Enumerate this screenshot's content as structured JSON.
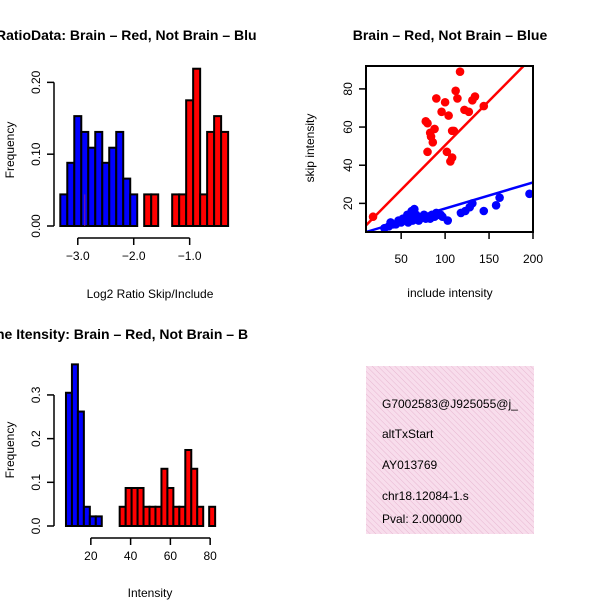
{
  "colors": {
    "brain": "#FF0000",
    "not_brain": "#0000FF",
    "overlap": "#7B1FA2",
    "info_bg": "#F8DDEC",
    "pval": "#A30000"
  },
  "info_box": {
    "lines": [
      "G7002583@J925055@j_",
      "altTxStart",
      "AY013769",
      "chr18.12084-1.s"
    ],
    "pval": "Pval: 2.000000"
  },
  "chart_data": [
    {
      "type": "bar",
      "title": "RatioData: Brain – Red, Not Brain – Blu",
      "xlabel": "Log2 Ratio Skip/Include",
      "ylabel": "Frequency",
      "xlim": [
        -3.3,
        -0.1
      ],
      "ylim": [
        0,
        0.22
      ],
      "xticks": [
        -3.0,
        -2.0,
        -1.0
      ],
      "xtick_labels": [
        "−3.0",
        "−2.0",
        "−1.0"
      ],
      "yticks": [
        0.0,
        0.1,
        0.2
      ],
      "ytick_labels": [
        "0.00",
        "0.10",
        "0.20"
      ],
      "bin_width": 0.125,
      "series": [
        {
          "name": "Not Brain",
          "color_key": "not_brain",
          "bins": [
            {
              "x": -3.25,
              "value": 0.044
            },
            {
              "x": -3.125,
              "value": 0.088
            },
            {
              "x": -3.0,
              "value": 0.153
            },
            {
              "x": -2.875,
              "value": 0.131
            },
            {
              "x": -2.75,
              "value": 0.109
            },
            {
              "x": -2.625,
              "value": 0.131
            },
            {
              "x": -2.5,
              "value": 0.088
            },
            {
              "x": -2.375,
              "value": 0.109
            },
            {
              "x": -2.25,
              "value": 0.131
            },
            {
              "x": -2.125,
              "value": 0.066
            },
            {
              "x": -2.0,
              "value": 0.044
            }
          ]
        },
        {
          "name": "Brain",
          "color_key": "brain",
          "bins": [
            {
              "x": -1.75,
              "value": 0.044
            },
            {
              "x": -1.625,
              "value": 0.044
            },
            {
              "x": -1.25,
              "value": 0.044
            },
            {
              "x": -1.125,
              "value": 0.044
            },
            {
              "x": -1.0,
              "value": 0.175
            },
            {
              "x": -0.875,
              "value": 0.219
            },
            {
              "x": -0.75,
              "value": 0.044
            },
            {
              "x": -0.625,
              "value": 0.131
            },
            {
              "x": -0.5,
              "value": 0.153
            },
            {
              "x": -0.375,
              "value": 0.131
            }
          ]
        }
      ],
      "overlap": [
        {
          "x": -2.875,
          "value": 0.044
        }
      ]
    },
    {
      "type": "scatter",
      "title": "Brain – Red, Not Brain – Blue",
      "xlabel": "include intensity",
      "ylabel": "skip intensity",
      "xlim": [
        10,
        200
      ],
      "ylim": [
        5,
        92
      ],
      "xticks": [
        50,
        100,
        150,
        200
      ],
      "yticks": [
        20,
        40,
        60,
        80
      ],
      "series": [
        {
          "name": "Brain",
          "color_key": "brain",
          "points": [
            [
              18,
              13
            ],
            [
              78,
              63
            ],
            [
              80,
              62
            ],
            [
              83,
              57
            ],
            [
              86,
              52
            ],
            [
              84,
              55
            ],
            [
              88,
              59
            ],
            [
              90,
              75
            ],
            [
              96,
              68
            ],
            [
              100,
              73
            ],
            [
              104,
              66
            ],
            [
              106,
              42
            ],
            [
              108,
              44
            ],
            [
              102,
              47
            ],
            [
              110,
              58
            ],
            [
              108,
              58
            ],
            [
              112,
              79
            ],
            [
              117,
              89
            ],
            [
              114,
              75
            ],
            [
              122,
              69
            ],
            [
              127,
              68
            ],
            [
              131,
              74
            ],
            [
              134,
              76
            ],
            [
              144,
              71
            ],
            [
              80,
              47
            ]
          ],
          "fit": {
            "x": [
              10,
              200
            ],
            "y": [
              8.5,
              97
            ]
          }
        },
        {
          "name": "Not Brain",
          "color_key": "not_brain",
          "points": [
            [
              31,
              7
            ],
            [
              36,
              8
            ],
            [
              38,
              10
            ],
            [
              41,
              9
            ],
            [
              44,
              9
            ],
            [
              47,
              11
            ],
            [
              50,
              10
            ],
            [
              52,
              12
            ],
            [
              55,
              11
            ],
            [
              57,
              14
            ],
            [
              60,
              13
            ],
            [
              62,
              16
            ],
            [
              63,
              11
            ],
            [
              64,
              12
            ],
            [
              65,
              17
            ],
            [
              66,
              12
            ],
            [
              67,
              14
            ],
            [
              68,
              13
            ],
            [
              70,
              11
            ],
            [
              72,
              12
            ],
            [
              74,
              13
            ],
            [
              76,
              14
            ],
            [
              78,
              12
            ],
            [
              80,
              13
            ],
            [
              83,
              12
            ],
            [
              85,
              14
            ],
            [
              88,
              13
            ],
            [
              90,
              15
            ],
            [
              92,
              14
            ],
            [
              95,
              14
            ],
            [
              97,
              13
            ],
            [
              103,
              11
            ],
            [
              118,
              15
            ],
            [
              123,
              16
            ],
            [
              128,
              18
            ],
            [
              131,
              20
            ],
            [
              144,
              16
            ],
            [
              158,
              19
            ],
            [
              162,
              23
            ],
            [
              196,
              25
            ],
            [
              40,
              9
            ],
            [
              58,
              10
            ]
          ],
          "fit": {
            "x": [
              10,
              200
            ],
            "y": [
              5,
              31
            ]
          }
        }
      ]
    },
    {
      "type": "bar",
      "title": "ne Itensity: Brain – Red, Not Brain – B",
      "xlabel": "Intensity",
      "ylabel": "Frequency",
      "xlim": [
        5,
        95
      ],
      "ylim": [
        0,
        0.38
      ],
      "xticks": [
        20,
        40,
        60,
        80
      ],
      "yticks": [
        0.0,
        0.1,
        0.2,
        0.3
      ],
      "ytick_labels": [
        "0.0",
        "0.1",
        "0.2",
        "0.3"
      ],
      "bin_width": 3,
      "series": [
        {
          "name": "Not Brain",
          "color_key": "not_brain",
          "bins": [
            {
              "x": 9,
              "value": 0.305
            },
            {
              "x": 12,
              "value": 0.37
            },
            {
              "x": 15,
              "value": 0.262
            },
            {
              "x": 18,
              "value": 0.044
            },
            {
              "x": 21,
              "value": 0.022
            },
            {
              "x": 24,
              "value": 0.022
            }
          ]
        },
        {
          "name": "Brain",
          "color_key": "brain",
          "bins": [
            {
              "x": 36,
              "value": 0.044
            },
            {
              "x": 39,
              "value": 0.087
            },
            {
              "x": 42,
              "value": 0.087
            },
            {
              "x": 45,
              "value": 0.087
            },
            {
              "x": 48,
              "value": 0.044
            },
            {
              "x": 51,
              "value": 0.044
            },
            {
              "x": 54,
              "value": 0.044
            },
            {
              "x": 57,
              "value": 0.131
            },
            {
              "x": 60,
              "value": 0.087
            },
            {
              "x": 63,
              "value": 0.044
            },
            {
              "x": 66,
              "value": 0.044
            },
            {
              "x": 69,
              "value": 0.174
            },
            {
              "x": 72,
              "value": 0.131
            },
            {
              "x": 75,
              "value": 0.044
            },
            {
              "x": 81,
              "value": 0.044
            }
          ]
        }
      ],
      "overlap": [
        {
          "x": 12,
          "value": 0.087
        }
      ]
    }
  ]
}
